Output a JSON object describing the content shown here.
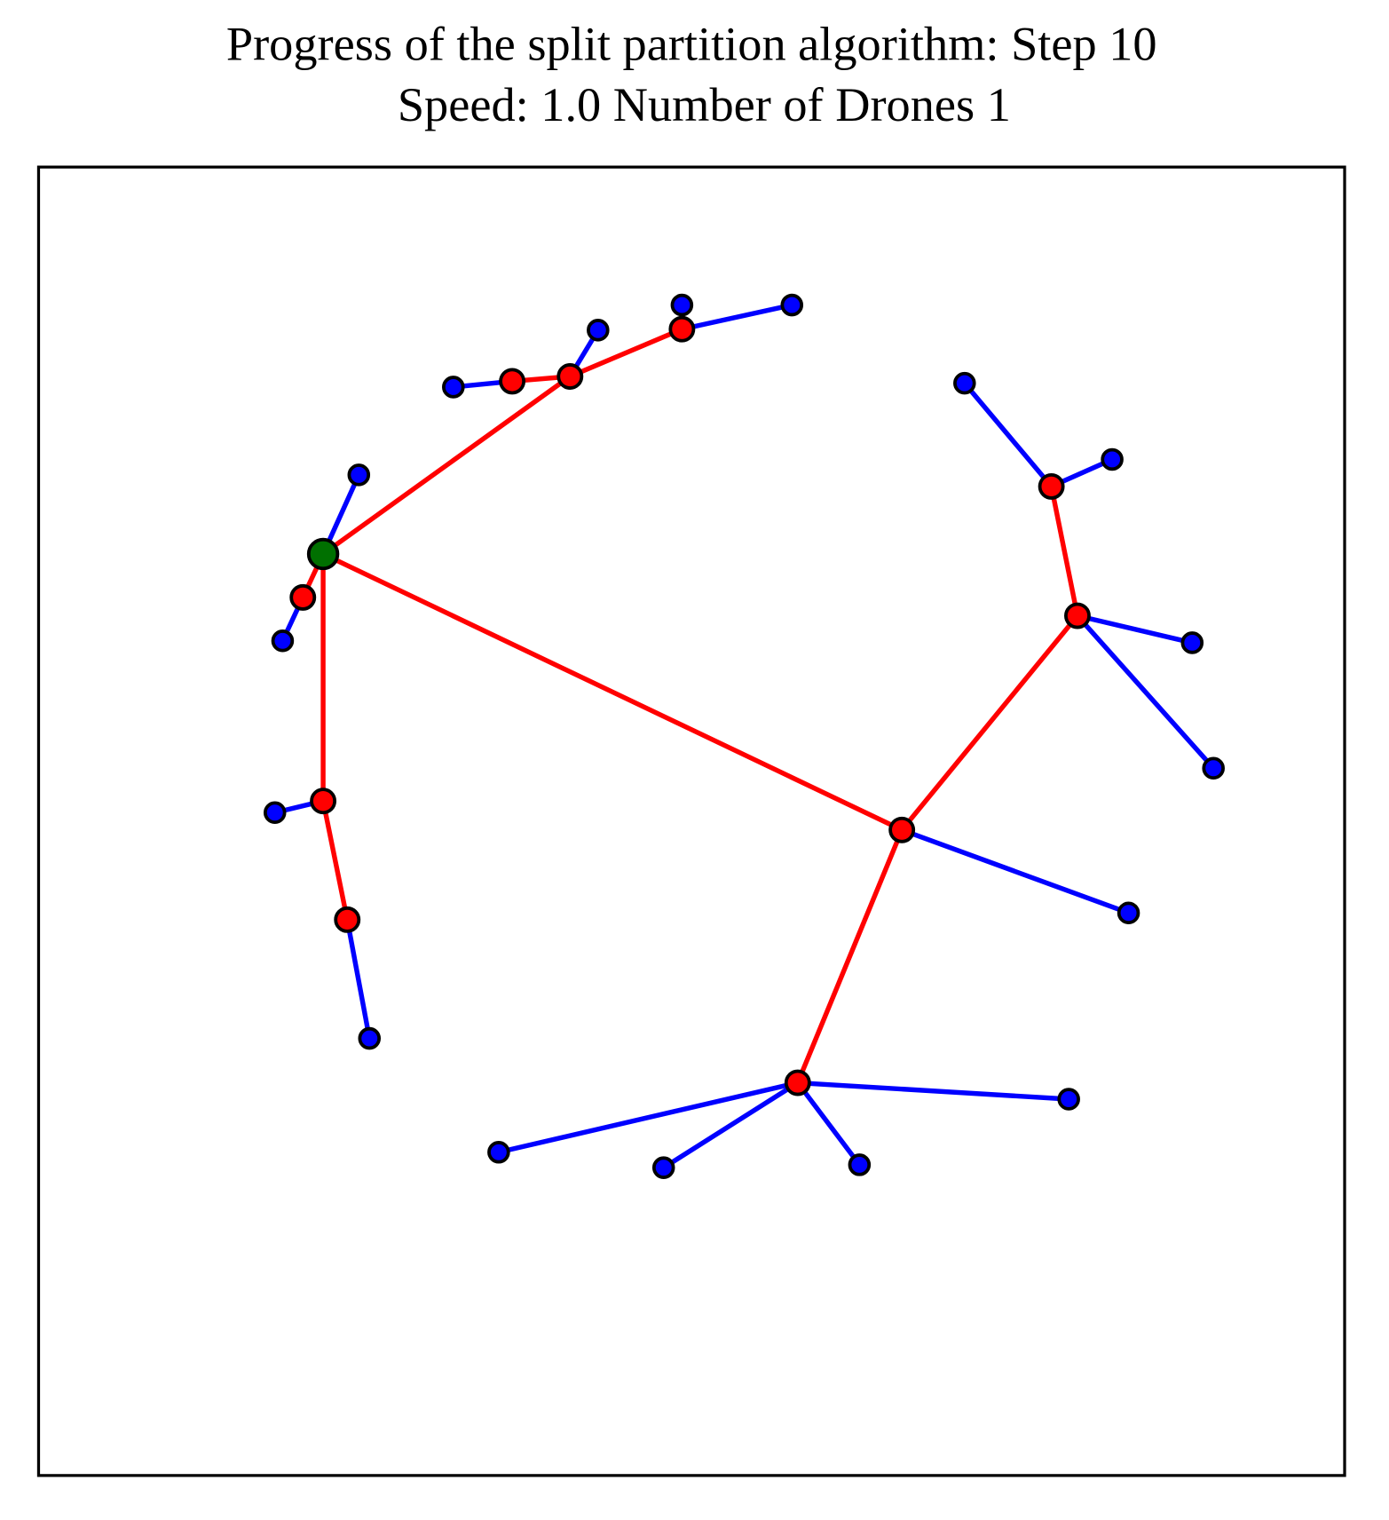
{
  "header": {
    "title_lines": [
      "Progress of the split partition algorithm: Step 10",
      "Speed: 1.0 Number of Drones 1"
    ]
  }
}
